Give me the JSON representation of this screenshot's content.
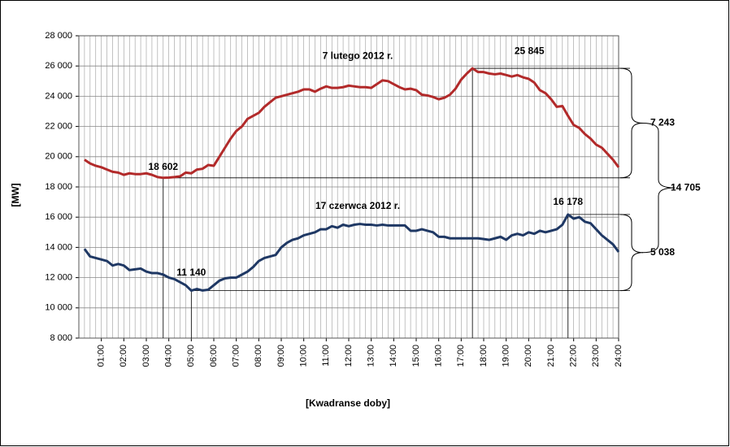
{
  "chart_data": {
    "type": "line",
    "xlabel": "[Kwadranse doby]",
    "ylabel": "[MW]",
    "x": [
      0.25,
      0.5,
      0.75,
      1,
      1.25,
      1.5,
      1.75,
      2,
      2.25,
      2.5,
      2.75,
      3,
      3.25,
      3.5,
      3.75,
      4,
      4.25,
      4.5,
      4.75,
      5,
      5.25,
      5.5,
      5.75,
      6,
      6.25,
      6.5,
      6.75,
      7,
      7.25,
      7.5,
      7.75,
      8,
      8.25,
      8.5,
      8.75,
      9,
      9.25,
      9.5,
      9.75,
      10,
      10.25,
      10.5,
      10.75,
      11,
      11.25,
      11.5,
      11.75,
      12,
      12.25,
      12.5,
      12.75,
      13,
      13.25,
      13.5,
      13.75,
      14,
      14.25,
      14.5,
      14.75,
      15,
      15.25,
      15.5,
      15.75,
      16,
      16.25,
      16.5,
      16.75,
      17,
      17.25,
      17.5,
      17.75,
      18,
      18.25,
      18.5,
      18.75,
      19,
      19.25,
      19.5,
      19.75,
      20,
      20.25,
      20.5,
      20.75,
      21,
      21.25,
      21.5,
      21.75,
      22,
      22.25,
      22.5,
      22.75,
      23,
      23.25,
      23.5,
      23.75,
      24
    ],
    "series": [
      {
        "name": "7 lutego 2012 r.",
        "color": "#b22a2a",
        "values": [
          19800,
          19550,
          19400,
          19300,
          19150,
          19000,
          18950,
          18800,
          18900,
          18850,
          18850,
          18900,
          18800,
          18650,
          18602,
          18620,
          18650,
          18700,
          18950,
          18900,
          19150,
          19200,
          19450,
          19400,
          20000,
          20600,
          21200,
          21700,
          22000,
          22500,
          22700,
          22900,
          23300,
          23600,
          23900,
          24000,
          24100,
          24200,
          24300,
          24450,
          24450,
          24300,
          24500,
          24650,
          24550,
          24550,
          24600,
          24700,
          24650,
          24600,
          24600,
          24550,
          24800,
          25050,
          25000,
          24800,
          24600,
          24450,
          24500,
          24400,
          24100,
          24050,
          23950,
          23800,
          23900,
          24100,
          24500,
          25100,
          25500,
          25845,
          25600,
          25600,
          25500,
          25450,
          25500,
          25400,
          25300,
          25400,
          25250,
          25150,
          24900,
          24400,
          24200,
          23800,
          23300,
          23350,
          22700,
          22100,
          21900,
          21500,
          21200,
          20800,
          20600,
          20200,
          19800,
          19300
        ]
      },
      {
        "name": "17 czerwca 2012 r.",
        "color": "#1f3864",
        "values": [
          13900,
          13400,
          13300,
          13200,
          13100,
          12800,
          12900,
          12800,
          12500,
          12550,
          12600,
          12400,
          12300,
          12300,
          12200,
          12000,
          11900,
          11700,
          11500,
          11140,
          11250,
          11150,
          11200,
          11500,
          11800,
          11950,
          12000,
          12000,
          12200,
          12400,
          12700,
          13100,
          13300,
          13400,
          13500,
          14000,
          14300,
          14500,
          14600,
          14800,
          14900,
          15000,
          15200,
          15200,
          15400,
          15300,
          15500,
          15400,
          15500,
          15550,
          15500,
          15500,
          15450,
          15500,
          15450,
          15450,
          15450,
          15450,
          15100,
          15100,
          15200,
          15100,
          15000,
          14700,
          14700,
          14600,
          14600,
          14600,
          14600,
          14600,
          14600,
          14550,
          14500,
          14600,
          14700,
          14500,
          14800,
          14900,
          14800,
          15000,
          14900,
          15100,
          15000,
          15100,
          15200,
          15500,
          16178,
          15900,
          16000,
          15700,
          15600,
          15200,
          14800,
          14500,
          14200,
          13700
        ]
      }
    ],
    "annotations": {
      "max_0": "25 845",
      "min_0": "18 602",
      "max_1": "16 178",
      "min_1": "11 140",
      "range_0": "7 243",
      "range_1": "5 038",
      "range_total": "14 705"
    },
    "xlim": [
      0,
      24
    ],
    "xticks": [
      {
        "value": 1,
        "label": "01:00"
      },
      {
        "value": 2,
        "label": "02:00"
      },
      {
        "value": 3,
        "label": "03:00"
      },
      {
        "value": 4,
        "label": "04:00"
      },
      {
        "value": 5,
        "label": "05:00"
      },
      {
        "value": 6,
        "label": "06:00"
      },
      {
        "value": 7,
        "label": "07:00"
      },
      {
        "value": 8,
        "label": "08:00"
      },
      {
        "value": 9,
        "label": "09:00"
      },
      {
        "value": 10,
        "label": "10:00"
      },
      {
        "value": 11,
        "label": "11:00"
      },
      {
        "value": 12,
        "label": "12:00"
      },
      {
        "value": 13,
        "label": "13:00"
      },
      {
        "value": 14,
        "label": "14:00"
      },
      {
        "value": 15,
        "label": "15:00"
      },
      {
        "value": 16,
        "label": "16:00"
      },
      {
        "value": 17,
        "label": "17:00"
      },
      {
        "value": 18,
        "label": "18:00"
      },
      {
        "value": 19,
        "label": "19:00"
      },
      {
        "value": 20,
        "label": "20:00"
      },
      {
        "value": 21,
        "label": "21:00"
      },
      {
        "value": 22,
        "label": "22:00"
      },
      {
        "value": 23,
        "label": "23:00"
      },
      {
        "value": 24,
        "label": "24:00"
      }
    ],
    "ylim": [
      8000,
      28000
    ],
    "yticks": [
      {
        "value": 8000,
        "label": "8 000"
      },
      {
        "value": 10000,
        "label": "10 000"
      },
      {
        "value": 12000,
        "label": "12 000"
      },
      {
        "value": 14000,
        "label": "14 000"
      },
      {
        "value": 16000,
        "label": "16 000"
      },
      {
        "value": 18000,
        "label": "18 000"
      },
      {
        "value": 20000,
        "label": "20 000"
      },
      {
        "value": 22000,
        "label": "22 000"
      },
      {
        "value": 24000,
        "label": "24 000"
      },
      {
        "value": 26000,
        "label": "26 000"
      },
      {
        "value": 28000,
        "label": "28 000"
      }
    ],
    "grid": true
  }
}
